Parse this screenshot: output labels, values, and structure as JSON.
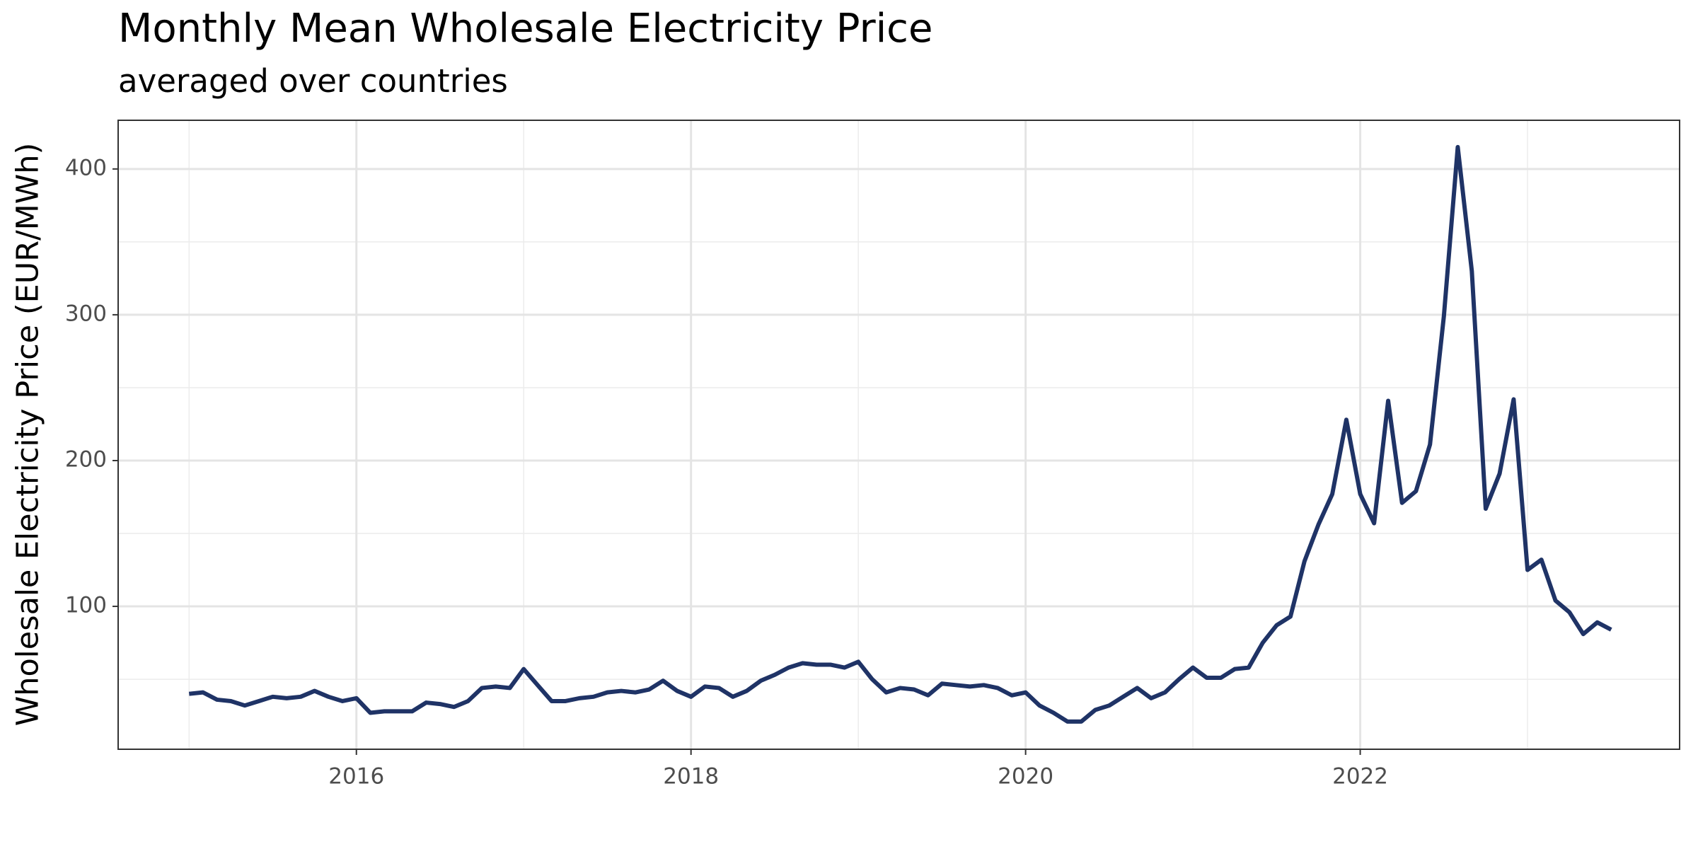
{
  "chart_data": {
    "type": "line",
    "title": "Monthly Mean Wholesale Electricity Price",
    "subtitle": "averaged over countries",
    "y_label": "Wholesale Electricity Price (EUR/MWh)",
    "x": [
      2015,
      2015.083,
      2015.167,
      2015.25,
      2015.333,
      2015.417,
      2015.5,
      2015.583,
      2015.667,
      2015.75,
      2015.833,
      2015.917,
      2016,
      2016.083,
      2016.167,
      2016.25,
      2016.333,
      2016.417,
      2016.5,
      2016.583,
      2016.667,
      2016.75,
      2016.833,
      2016.917,
      2017,
      2017.083,
      2017.167,
      2017.25,
      2017.333,
      2017.417,
      2017.5,
      2017.583,
      2017.667,
      2017.75,
      2017.833,
      2017.917,
      2018,
      2018.083,
      2018.167,
      2018.25,
      2018.333,
      2018.417,
      2018.5,
      2018.583,
      2018.667,
      2018.75,
      2018.833,
      2018.917,
      2019,
      2019.083,
      2019.167,
      2019.25,
      2019.333,
      2019.417,
      2019.5,
      2019.583,
      2019.667,
      2019.75,
      2019.833,
      2019.917,
      2020,
      2020.083,
      2020.167,
      2020.25,
      2020.333,
      2020.417,
      2020.5,
      2020.583,
      2020.667,
      2020.75,
      2020.833,
      2020.917,
      2021,
      2021.083,
      2021.167,
      2021.25,
      2021.333,
      2021.417,
      2021.5,
      2021.583,
      2021.667,
      2021.75,
      2021.833,
      2021.917,
      2022,
      2022.083,
      2022.167,
      2022.25,
      2022.333,
      2022.417,
      2022.5,
      2022.583,
      2022.667,
      2022.75,
      2022.833,
      2022.917,
      2023,
      2023.083,
      2023.167,
      2023.25,
      2023.333,
      2023.417,
      2023.5
    ],
    "series": [
      {
        "color": "#1f3366",
        "values": [
          40,
          41,
          36,
          35,
          32,
          35,
          38,
          37,
          38,
          42,
          38,
          35,
          37,
          27,
          28,
          28,
          28,
          34,
          33,
          31,
          35,
          44,
          45,
          44,
          57,
          46,
          35,
          35,
          37,
          38,
          41,
          42,
          41,
          43,
          49,
          42,
          38,
          45,
          44,
          38,
          42,
          49,
          53,
          58,
          61,
          60,
          60,
          58,
          62,
          50,
          41,
          44,
          43,
          39,
          47,
          46,
          45,
          46,
          44,
          39,
          41,
          32,
          27,
          21,
          21,
          29,
          32,
          38,
          44,
          37,
          41,
          50,
          58,
          51,
          51,
          57,
          58,
          75,
          87,
          93,
          131,
          156,
          177,
          228,
          177,
          157,
          241,
          171,
          179,
          211,
          299,
          415,
          330,
          167,
          191,
          242,
          125,
          132,
          104,
          96,
          81,
          89,
          84
        ]
      }
    ],
    "xlim": [
      2014.576,
      2023.909
    ],
    "ylim": [
      2,
      433.4
    ],
    "xticks": [
      2016,
      2018,
      2020,
      2022
    ],
    "yticks": [
      100,
      200,
      300,
      400
    ],
    "xgrid_minor": [
      2015,
      2017,
      2019,
      2021,
      2023
    ],
    "ygrid_minor": [
      50,
      150,
      250,
      350
    ],
    "grid": true
  }
}
